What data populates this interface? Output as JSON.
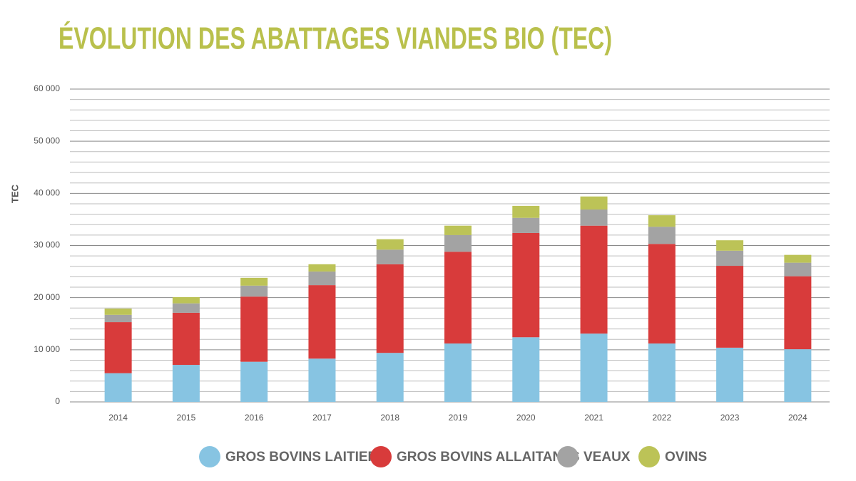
{
  "chart_data": {
    "type": "stacked_bar",
    "title": "ÉVOLUTION DES ABATTAGES VIANDES BIO (TEC)",
    "y_label": "TEC",
    "categories": [
      "2014",
      "2015",
      "2016",
      "2017",
      "2018",
      "2019",
      "2020",
      "2021",
      "2022",
      "2023",
      "2024"
    ],
    "series": [
      {
        "name": "GROS BOVINS LAITIERS",
        "color": "#87c4e2",
        "values": [
          5500,
          7100,
          7700,
          8300,
          9400,
          11200,
          12400,
          13100,
          11200,
          10400,
          10100
        ]
      },
      {
        "name": "GROS BOVINS ALLAITANTS",
        "color": "#d83b3b",
        "values": [
          9800,
          10000,
          12500,
          14100,
          17000,
          17600,
          20000,
          20700,
          19100,
          15700,
          14000
        ]
      },
      {
        "name": "VEAUX",
        "color": "#a3a3a3",
        "values": [
          1400,
          1800,
          2100,
          2600,
          2800,
          3200,
          2900,
          3100,
          3300,
          2900,
          2600
        ]
      },
      {
        "name": "OVINS",
        "color": "#bcc357",
        "values": [
          1200,
          1200,
          1500,
          1400,
          2000,
          1800,
          2300,
          2500,
          2200,
          2000,
          1500
        ]
      }
    ],
    "ylim": [
      0,
      60000
    ],
    "yticks": [
      0,
      {
        "value": 10000,
        "label": "10 000"
      },
      {
        "value": 20000,
        "label": "20 000"
      },
      {
        "value": 30000,
        "label": "30 000"
      },
      {
        "value": 40000,
        "label": "40 000"
      },
      {
        "value": 50000,
        "label": "50 000"
      },
      {
        "value": 60000,
        "label": "60 000"
      }
    ],
    "minor_yticks": [
      2000,
      4000,
      6000,
      8000,
      12000,
      14000,
      16000,
      18000,
      22000,
      24000,
      26000,
      28000,
      32000,
      34000,
      36000,
      38000,
      42000,
      44000,
      46000,
      48000,
      52000,
      54000,
      56000,
      58000
    ],
    "grid": true,
    "legend": "bottom",
    "title_color": "#b9c04c"
  }
}
